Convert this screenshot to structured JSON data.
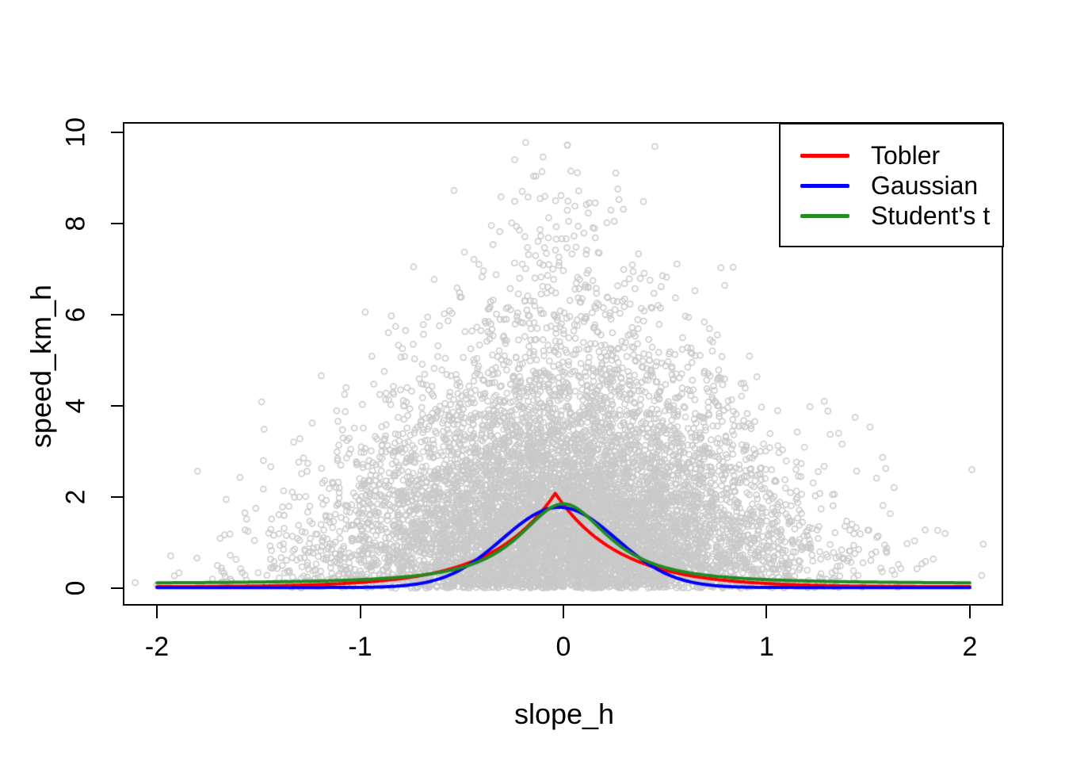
{
  "chart_data": {
    "type": "scatter",
    "title": "",
    "xlabel": "slope_h",
    "ylabel": "speed_km_h",
    "grid": false,
    "background": "#ffffff",
    "x_axis": {
      "ticks": [
        -2,
        -1,
        0,
        1,
        2
      ],
      "lim": [
        -2.16,
        2.16
      ]
    },
    "y_axis": {
      "ticks": [
        0,
        2,
        4,
        6,
        8,
        10
      ],
      "lim": [
        -0.365,
        10.19
      ]
    },
    "legend": {
      "position": "top-right"
    },
    "scatter": {
      "marker": "open-circle",
      "color": "#c9c9c9",
      "n": 9000,
      "seed": 20,
      "point_radius": 3.5,
      "stroke_width": 1.5,
      "x_clip": 2.12,
      "y_clip": 9.79,
      "mix": [
        {
          "p": 0.75,
          "sigma": 1.95
        },
        {
          "p": 0.25,
          "sigma": 3.55
        }
      ],
      "width_base": 0.13,
      "width_slope": 0.5,
      "width_ymax": 10.2,
      "outliers": [
        [
          -2.0,
          0.07
        ],
        [
          -1.67,
          0.33
        ],
        [
          -1.44,
          0.45
        ],
        [
          -1.3,
          2.0
        ],
        [
          -1.19,
          2.63
        ],
        [
          -1.26,
          0.25
        ],
        [
          -1.26,
          0.5
        ],
        [
          2.01,
          2.6
        ],
        [
          1.63,
          0.3
        ],
        [
          1.66,
          0.43
        ],
        [
          1.38,
          0.65
        ],
        [
          1.45,
          0.28
        ],
        [
          1.2,
          0.9
        ],
        [
          0.02,
          9.72
        ],
        [
          -0.24,
          9.4
        ],
        [
          0.45,
          9.69
        ]
      ]
    },
    "curves": [
      {
        "label": "Tobler",
        "color": "#ff0000",
        "type": "laplace",
        "a": 2.05,
        "b": 3.2,
        "x0": -0.04,
        "floor": 0.03,
        "peak": 2.08,
        "domain": [
          -2,
          2
        ],
        "width": 4
      },
      {
        "label": "Gaussian",
        "color": "#0000ff",
        "type": "gauss",
        "a": 1.76,
        "sigma": 0.28,
        "x0": -0.02,
        "floor": 0.015,
        "peak": 1.78,
        "domain": [
          -2,
          2
        ],
        "width": 4
      },
      {
        "label": "Student's t",
        "color": "#228b22",
        "type": "powertail",
        "a": 1.75,
        "s": 0.3,
        "p": 1.2,
        "x0": 0,
        "floor": 0.1,
        "peak": 1.85,
        "domain": [
          -2,
          2
        ],
        "width": 4
      }
    ]
  }
}
